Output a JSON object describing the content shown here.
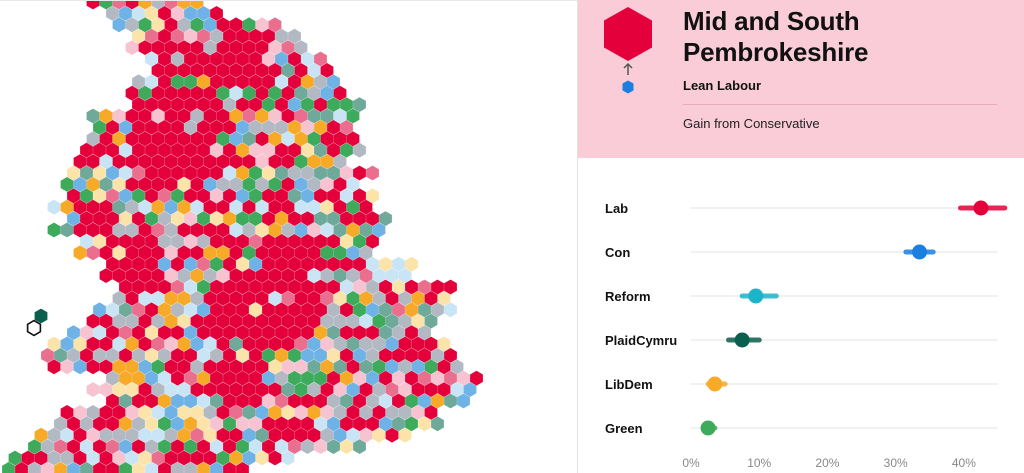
{
  "constituency": {
    "name": "Mid and South Pembrokeshire",
    "lean": "Lean Labour",
    "status": "Gain from Conservative",
    "colors": {
      "card_background": "#f9ccd7",
      "big_hex": "#e4003b",
      "small_hex": "#1a7fe0",
      "arrow": "#555555"
    }
  },
  "legend_map": {
    "hex_colors": {
      "Labour": "#e4003b",
      "Labour light": "#ea6f8f",
      "Labour pale": "#f7c3d0",
      "Conservative light": "#6fb2e6",
      "Conservative pale": "#c9e4f5",
      "Other": "#b3b9c3",
      "LibDem": "#f7a928",
      "LibDem pale": "#fbe3a9",
      "Green": "#3dab5b",
      "PlaidCymru": "#0b5f4e",
      "PlaidCymru light": "#6ea99a"
    },
    "selected_seat": "Mid and South Pembrokeshire"
  },
  "chart_data": {
    "type": "scatter",
    "title": "",
    "xlabel": "",
    "ylabel": "",
    "categories": [
      "Lab",
      "Con",
      "Reform",
      "PlaidCymru",
      "LibDem",
      "Green"
    ],
    "values": [
      42.5,
      33.5,
      9.5,
      7.5,
      3.5,
      2.5
    ],
    "ranges": [
      [
        39.5,
        46
      ],
      [
        31.5,
        35.5
      ],
      [
        7.5,
        12.5
      ],
      [
        5.5,
        10
      ],
      [
        2.5,
        5
      ],
      [
        2,
        3.5
      ]
    ],
    "colors": [
      "#e4003b",
      "#1a7fe0",
      "#1cb4c8",
      "#0b5f4e",
      "#f7a928",
      "#3dab5b"
    ],
    "xlim": [
      0,
      45
    ],
    "xticks": [
      0,
      10,
      20,
      30,
      40
    ],
    "xtick_labels": [
      "0%",
      "10%",
      "20%",
      "30%",
      "40%"
    ],
    "grid": true
  }
}
